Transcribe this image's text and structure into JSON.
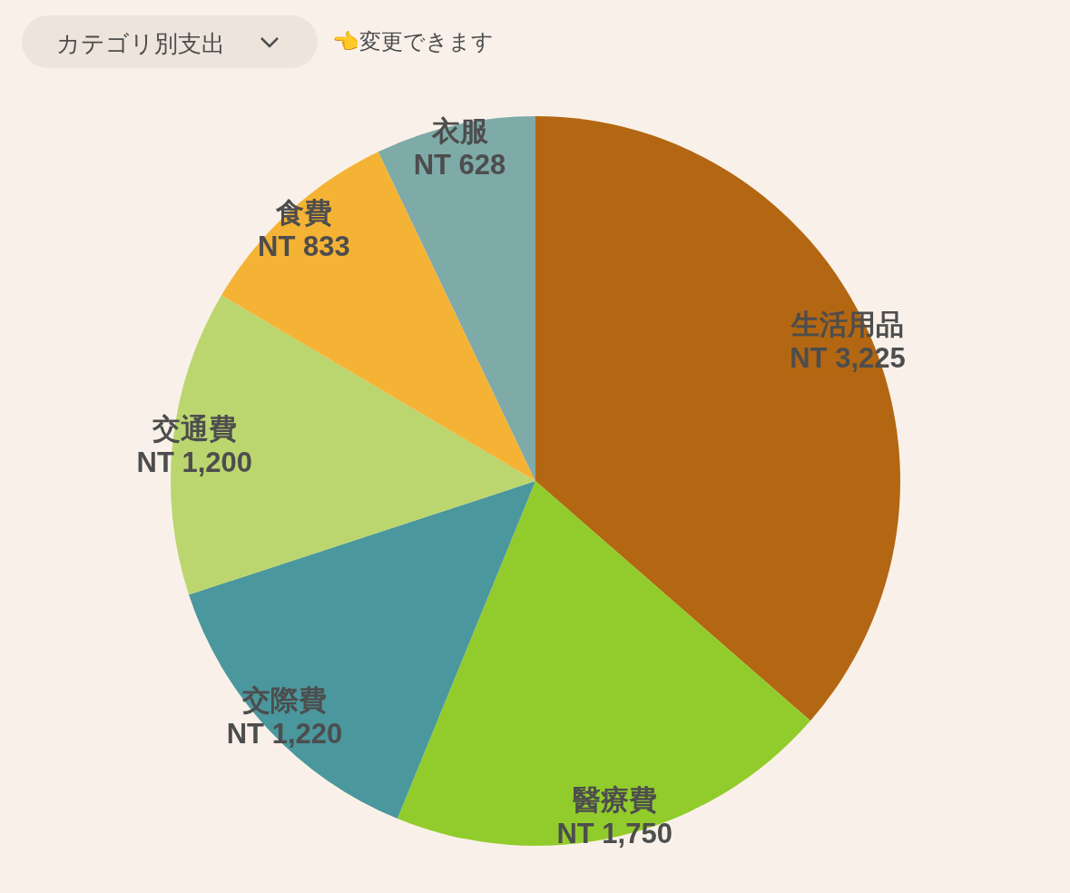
{
  "chart_data": {
    "type": "pie",
    "title": "カテゴリ別支出",
    "annotations": [
      "👈変更できます"
    ],
    "categories": [
      "生活用品",
      "醫療費",
      "交際費",
      "交通費",
      "食費",
      "衣服"
    ],
    "values": [
      3225,
      1750,
      1220,
      1200,
      833,
      628
    ],
    "colors": [
      "#b36712",
      "#92cc2c",
      "#4a979d",
      "#bbd66f",
      "#f5b335",
      "#7eaaa8"
    ],
    "value_labels": [
      "NT 3,225",
      "NT 1,750",
      "NT 1,220",
      "NT 1,200",
      "NT 833",
      "NT 628"
    ],
    "legend": false
  }
}
